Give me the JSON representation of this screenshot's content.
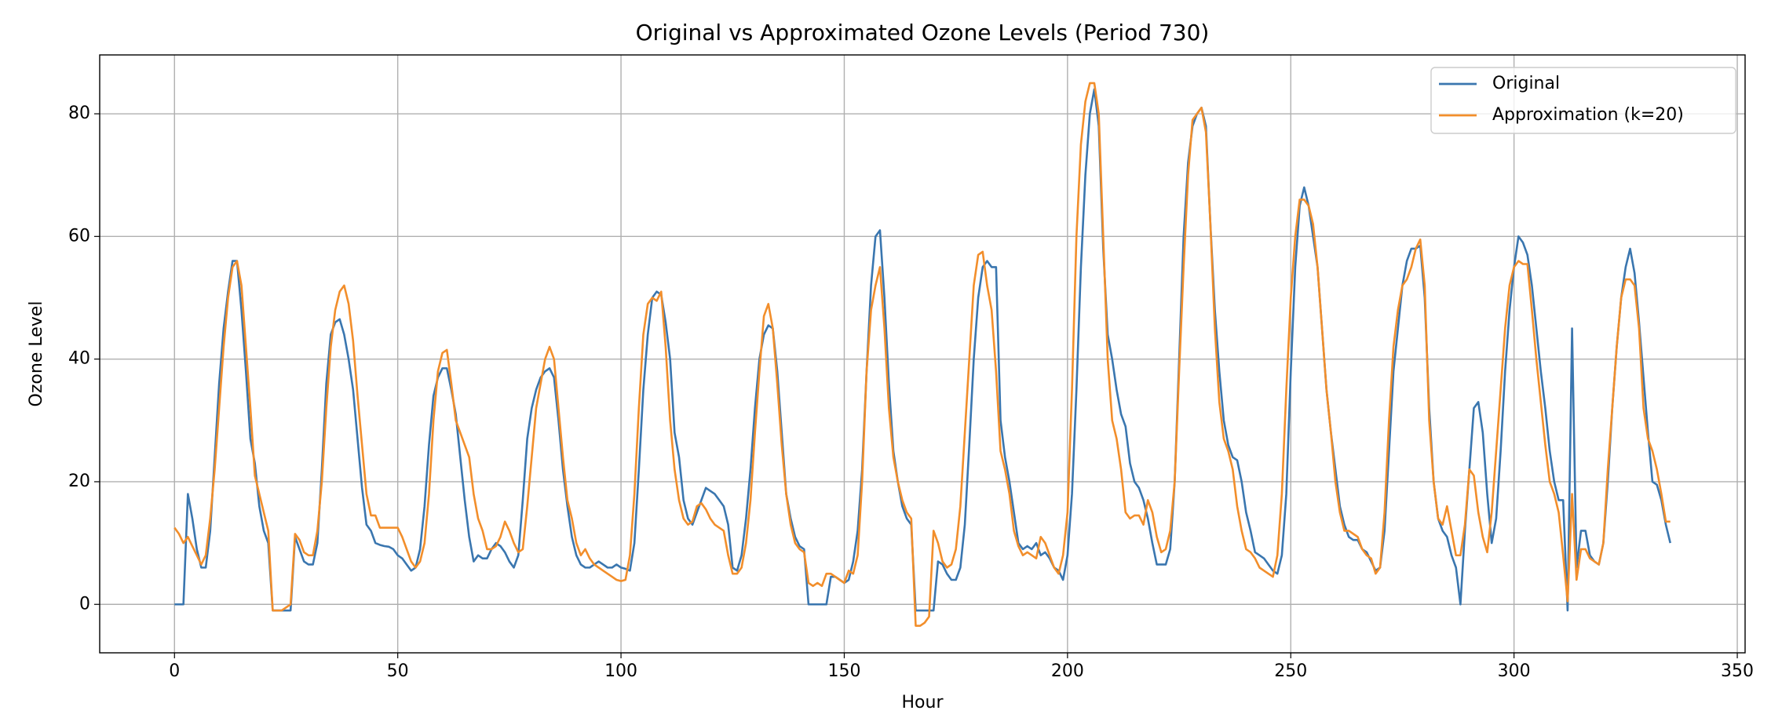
{
  "chart_data": {
    "type": "line",
    "title": "Original vs Approximated Ozone Levels (Period 730)",
    "xlabel": "Hour",
    "ylabel": "Ozone Level",
    "x": [
      0,
      1,
      2,
      3,
      4,
      5,
      6,
      7,
      8,
      9,
      10,
      11,
      12,
      13,
      14,
      15,
      16,
      17,
      18,
      19,
      20,
      21,
      22,
      23,
      24,
      25,
      26,
      27,
      28,
      29,
      30,
      31,
      32,
      33,
      34,
      35,
      36,
      37,
      38,
      39,
      40,
      41,
      42,
      43,
      44,
      45,
      46,
      47,
      48,
      49,
      50,
      51,
      52,
      53,
      54,
      55,
      56,
      57,
      58,
      59,
      60,
      61,
      62,
      63,
      64,
      65,
      66,
      67,
      68,
      69,
      70,
      71,
      72,
      73,
      74,
      75,
      76,
      77,
      78,
      79,
      80,
      81,
      82,
      83,
      84,
      85,
      86,
      87,
      88,
      89,
      90,
      91,
      92,
      93,
      94,
      95,
      96,
      97,
      98,
      99,
      100,
      101,
      102,
      103,
      104,
      105,
      106,
      107,
      108,
      109,
      110,
      111,
      112,
      113,
      114,
      115,
      116,
      117,
      118,
      119,
      120,
      121,
      122,
      123,
      124,
      125,
      126,
      127,
      128,
      129,
      130,
      131,
      132,
      133,
      134,
      135,
      136,
      137,
      138,
      139,
      140,
      141,
      142,
      143,
      144,
      145,
      146,
      147,
      148,
      149,
      150,
      151,
      152,
      153,
      154,
      155,
      156,
      157,
      158,
      159,
      160,
      161,
      162,
      163,
      164,
      165,
      166,
      167,
      168,
      169,
      170,
      171,
      172,
      173,
      174,
      175,
      176,
      177,
      178,
      179,
      180,
      181,
      182,
      183,
      184,
      185,
      186,
      187,
      188,
      189,
      190,
      191,
      192,
      193,
      194,
      195,
      196,
      197,
      198,
      199,
      200,
      201,
      202,
      203,
      204,
      205,
      206,
      207,
      208,
      209,
      210,
      211,
      212,
      213,
      214,
      215,
      216,
      217,
      218,
      219,
      220,
      221,
      222,
      223,
      224,
      225,
      226,
      227,
      228,
      229,
      230,
      231,
      232,
      233,
      234,
      235,
      236,
      237,
      238,
      239,
      240,
      241,
      242,
      243,
      244,
      245,
      246,
      247,
      248,
      249,
      250,
      251,
      252,
      253,
      254,
      255,
      256,
      257,
      258,
      259,
      260,
      261,
      262,
      263,
      264,
      265,
      266,
      267,
      268,
      269,
      270,
      271,
      272,
      273,
      274,
      275,
      276,
      277,
      278,
      279,
      280,
      281,
      282,
      283,
      284,
      285,
      286,
      287,
      288,
      289,
      290,
      291,
      292,
      293,
      294,
      295,
      296,
      297,
      298,
      299,
      300,
      301,
      302,
      303,
      304,
      305,
      306,
      307,
      308,
      309,
      310,
      311,
      312,
      313,
      314,
      315,
      316,
      317,
      318,
      319,
      320,
      321,
      322,
      323,
      324,
      325,
      326,
      327,
      328,
      329,
      330,
      331,
      332,
      333,
      334,
      335
    ],
    "series": [
      {
        "name": "Original",
        "color": "#3a76af",
        "values": [
          0,
          0,
          0,
          18,
          14,
          9,
          6,
          6,
          12,
          24,
          36,
          45,
          51,
          56,
          56,
          48,
          38,
          27,
          23,
          16,
          12,
          10,
          -1,
          -1,
          -1,
          -1,
          -1,
          11,
          9,
          7,
          6.5,
          6.5,
          10,
          22,
          36,
          44,
          46,
          46.5,
          44,
          40,
          35,
          27,
          19,
          13,
          12,
          10,
          9.7,
          9.5,
          9.4,
          9,
          8,
          7.5,
          6.5,
          5.5,
          6,
          9,
          16,
          26,
          34,
          37,
          38.5,
          38.5,
          35,
          31,
          24,
          17,
          11,
          7,
          8,
          7.5,
          7.5,
          9,
          10,
          9.5,
          8.5,
          7,
          6,
          8,
          17,
          27,
          32,
          35,
          37,
          38,
          38.5,
          37,
          30,
          22,
          16,
          11,
          8,
          6.5,
          6,
          6,
          6.5,
          7,
          6.5,
          6,
          6,
          6.5,
          6,
          5.8,
          5.5,
          10,
          22,
          35,
          44,
          50,
          51,
          50.5,
          46,
          40,
          28,
          24,
          17,
          14,
          13,
          15,
          17,
          19,
          18.5,
          18,
          17,
          16,
          13,
          6,
          5.5,
          8,
          14,
          22,
          32,
          40,
          44,
          45.5,
          45,
          38,
          28,
          18,
          14,
          11,
          9.5,
          9,
          0,
          0,
          0,
          0,
          0,
          4.5,
          4.5,
          4,
          3.5,
          4,
          7,
          12,
          22,
          38,
          52,
          60,
          61,
          50,
          36,
          25,
          20,
          16,
          14,
          13,
          -1,
          -1,
          -1,
          -1,
          -1,
          7,
          6.5,
          5,
          4,
          4,
          6,
          13,
          26,
          40,
          50,
          55,
          56,
          55,
          55,
          30,
          24,
          20,
          15,
          10,
          9,
          9.5,
          9,
          10,
          8,
          8.5,
          7.5,
          6,
          5.5,
          4,
          8,
          18,
          35,
          55,
          70,
          80,
          84,
          78,
          58,
          44,
          40,
          35,
          31,
          29,
          23,
          20,
          19,
          17,
          14,
          10,
          6.5,
          6.5,
          6.5,
          9,
          20,
          40,
          60,
          72,
          78,
          80,
          81,
          78,
          62,
          48,
          38,
          30,
          26,
          24,
          23.5,
          20,
          15,
          12,
          8.5,
          8,
          7.5,
          6.5,
          5.5,
          5,
          8,
          18,
          38,
          55,
          65,
          68,
          65,
          60,
          55,
          45,
          35,
          28,
          22,
          16,
          13,
          11,
          10.5,
          10.5,
          9,
          8.5,
          7,
          5.5,
          6,
          12,
          25,
          38,
          45,
          52,
          56,
          58,
          58,
          58.5,
          50,
          32,
          20,
          14,
          12,
          11,
          8,
          6,
          0,
          12,
          22,
          32,
          33,
          28,
          18,
          10,
          14,
          25,
          38,
          48,
          55,
          60,
          59,
          57,
          52,
          45,
          38,
          32,
          25,
          20,
          17,
          17,
          -1,
          45,
          6,
          12,
          12,
          8,
          7,
          6.5,
          10,
          20,
          32,
          42,
          50,
          55,
          58,
          54,
          46,
          37,
          28,
          20,
          19.5,
          17,
          13,
          10
        ]
      },
      {
        "name": "Approximation (k=20)",
        "color": "#f28e2b",
        "values": [
          12.5,
          11.5,
          10,
          11,
          9.5,
          8,
          6.5,
          8,
          14,
          22,
          32,
          42,
          50,
          55,
          56,
          52,
          42,
          32,
          21,
          18,
          15,
          12,
          -1,
          -1,
          -1,
          -0.5,
          0,
          11.5,
          10.5,
          8.5,
          8,
          8,
          12,
          20,
          32,
          42,
          48,
          51,
          52,
          49,
          43,
          34,
          26,
          18,
          14.5,
          14.5,
          12.5,
          12.5,
          12.5,
          12.5,
          12.5,
          11,
          9,
          7,
          6,
          7,
          10,
          18,
          30,
          38,
          41,
          41.5,
          36,
          30,
          28,
          26,
          24,
          18,
          14,
          12,
          9,
          9,
          9.5,
          11,
          13.5,
          12,
          10,
          8.5,
          9,
          16,
          24,
          32,
          36,
          40,
          42,
          40,
          32,
          24,
          17,
          14,
          10,
          8,
          9,
          7.5,
          6.5,
          6,
          5.5,
          5,
          4.5,
          4,
          3.8,
          4,
          8,
          18,
          32,
          44,
          49,
          50,
          49.5,
          51,
          42,
          30,
          22,
          17,
          14,
          13,
          13.5,
          16,
          16.5,
          15.5,
          14,
          13,
          12.5,
          12,
          8,
          5,
          5,
          6,
          10,
          17,
          28,
          38,
          47,
          49,
          45,
          36,
          26,
          18,
          13,
          10,
          9,
          8.5,
          3.5,
          3,
          3.5,
          3,
          5,
          5,
          4.5,
          4,
          3.5,
          5.5,
          5,
          8,
          20,
          38,
          48,
          52,
          55,
          45,
          32,
          24,
          20,
          17,
          15,
          14,
          -3.5,
          -3.5,
          -3,
          -2,
          12,
          10,
          7,
          6,
          6.5,
          9,
          16,
          28,
          40,
          52,
          57,
          57.5,
          52,
          48,
          38,
          25,
          22,
          18,
          12,
          9.5,
          8,
          8.5,
          8,
          7.5,
          11,
          10,
          8,
          6,
          5,
          8,
          15,
          35,
          60,
          75,
          82,
          85,
          85,
          80,
          60,
          40,
          30,
          27,
          22,
          15,
          14,
          14.5,
          14.5,
          13,
          17,
          15,
          11,
          8.5,
          9,
          12,
          20,
          38,
          55,
          70,
          79,
          80,
          81,
          77,
          62,
          45,
          33,
          27,
          25,
          22,
          16,
          12,
          9,
          8.5,
          7.5,
          6,
          5.5,
          5,
          4.5,
          8,
          18,
          35,
          50,
          60,
          66,
          66,
          65,
          62,
          55,
          45,
          35,
          28,
          20,
          15,
          12,
          12,
          11.5,
          11,
          9,
          8,
          7.5,
          5,
          6,
          15,
          30,
          42,
          48,
          52,
          53,
          55,
          58,
          59.5,
          52,
          30,
          20,
          14,
          13,
          16,
          12,
          8,
          8,
          13,
          22,
          21,
          15,
          11,
          8.5,
          15,
          25,
          35,
          45,
          52,
          55,
          56,
          55.5,
          55.5,
          48,
          40,
          33,
          26,
          20,
          18,
          15,
          8,
          0.5,
          18,
          4,
          9,
          9,
          7.5,
          7,
          6.5,
          10,
          22,
          32,
          42,
          50,
          53,
          53,
          52,
          45,
          32,
          27,
          25,
          22,
          18,
          13.5,
          13.5
        ]
      }
    ],
    "xlim": [
      -16.75,
      351.75
    ],
    "xticks": [
      0,
      50,
      100,
      150,
      200,
      250,
      300,
      350
    ],
    "ylim": [
      -7.9,
      89.6
    ],
    "yticks": [
      0,
      20,
      40,
      60,
      80
    ],
    "grid": true,
    "legend": "upper right"
  }
}
